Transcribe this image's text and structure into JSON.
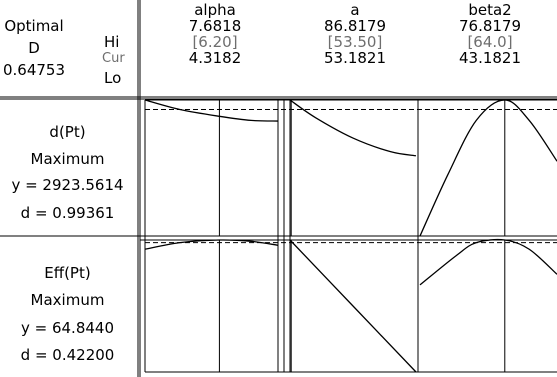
{
  "header": {
    "optimal_label": "Optimal",
    "d_label": "D",
    "d_value": "0.64753",
    "hi_label": "Hi",
    "cur_label": "Cur",
    "lo_label": "Lo"
  },
  "factors": [
    {
      "name": "alpha",
      "hi": "7.6818",
      "cur": "[6.20]",
      "lo": "4.3182"
    },
    {
      "name": "a",
      "hi": "86.8179",
      "cur": "[53.50]",
      "lo": "53.1821"
    },
    {
      "name": "beta2",
      "hi": "76.8179",
      "cur": "[64.0]",
      "lo": "43.1821"
    }
  ],
  "responses": [
    {
      "name": "d(Pt)",
      "goal": "Maximum",
      "y_text": "y = 2923.5614",
      "d_text": "d = 0.99361"
    },
    {
      "name": "Eff(Pt)",
      "goal": "Maximum",
      "y_text": "y = 64.8440",
      "d_text": "d = 0.42200"
    }
  ],
  "chart_data": {
    "type": "line",
    "title": "",
    "rows": [
      "d(Pt)",
      "Eff(Pt)"
    ],
    "columns": [
      "alpha",
      "a",
      "beta2"
    ],
    "panels": [
      {
        "response": "d(Pt)",
        "factor": "alpha",
        "x": [
          4.3182,
          5.2,
          6.2,
          7.0,
          7.6818
        ],
        "y": [
          1.0,
          0.93,
          0.88,
          0.85,
          0.845
        ]
      },
      {
        "response": "d(Pt)",
        "factor": "a",
        "x": [
          53.1821,
          60,
          70,
          80,
          86.8179
        ],
        "y": [
          1.0,
          0.87,
          0.72,
          0.62,
          0.59
        ]
      },
      {
        "response": "d(Pt)",
        "factor": "beta2",
        "x": [
          43.1821,
          50,
          57,
          64.0,
          70,
          76.8179
        ],
        "y": [
          0.0,
          0.45,
          0.85,
          1.0,
          0.85,
          0.55
        ]
      },
      {
        "response": "Eff(Pt)",
        "factor": "alpha",
        "x": [
          4.3182,
          5.2,
          6.2,
          7.0,
          7.6818
        ],
        "y": [
          0.93,
          0.98,
          1.0,
          0.99,
          0.96
        ]
      },
      {
        "response": "Eff(Pt)",
        "factor": "a",
        "x": [
          53.1821,
          70,
          86.8179
        ],
        "y": [
          1.0,
          0.5,
          0.0
        ]
      },
      {
        "response": "Eff(Pt)",
        "factor": "beta2",
        "x": [
          43.1821,
          52,
          57,
          64.0,
          70,
          76.8179
        ],
        "y": [
          0.66,
          0.88,
          0.98,
          1.0,
          0.93,
          0.74
        ]
      }
    ],
    "reference_lines": {
      "d(Pt)": 0.93,
      "Eff(Pt)": 0.98
    },
    "current_settings": {
      "alpha": 6.2,
      "a": 53.5,
      "beta2": 64.0
    },
    "grid": false
  }
}
